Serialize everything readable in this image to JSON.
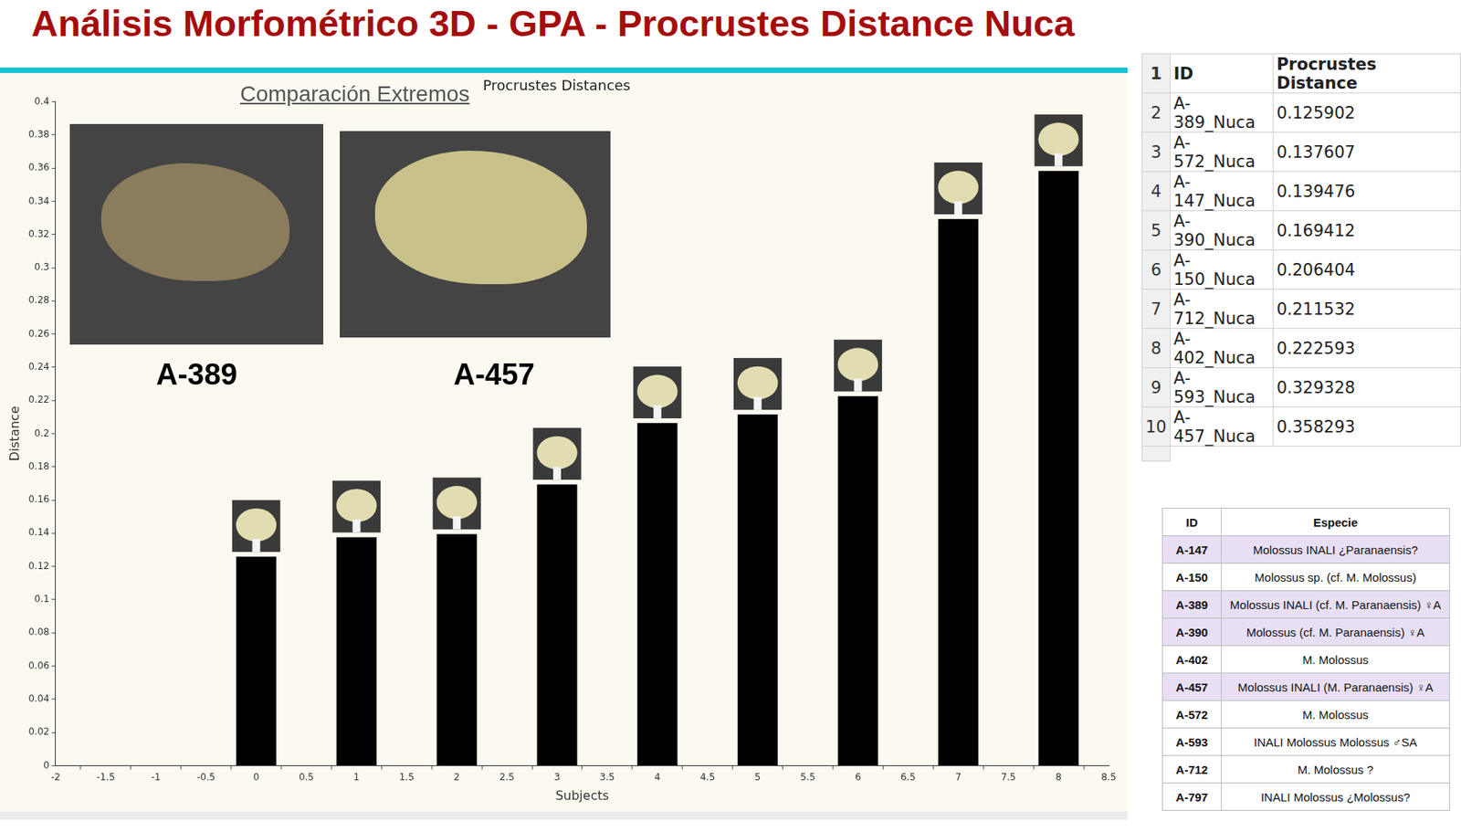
{
  "page_title": "Análisis Morfométrico 3D - GPA - Procrustes Distance Nuca",
  "chart_data": {
    "type": "bar",
    "title": "Procrustes Distances",
    "x_label": "Subjects",
    "y_label": "Distance",
    "x": [
      0,
      1,
      2,
      3,
      4,
      5,
      6,
      7,
      8
    ],
    "values": [
      0.125902,
      0.137607,
      0.139476,
      0.169412,
      0.206404,
      0.211532,
      0.222593,
      0.329328,
      0.358293
    ],
    "color": "#000000",
    "xlim": [
      -2,
      8.5
    ],
    "xticks": [
      -2,
      -1.5,
      -1,
      -0.5,
      0,
      0.5,
      1,
      1.5,
      2,
      2.5,
      3,
      3.5,
      4,
      4.5,
      5,
      5.5,
      6,
      6.5,
      7,
      7.5,
      8,
      8.5
    ],
    "ylim": [
      0,
      0.4
    ],
    "yticks": [
      0,
      0.02,
      0.04,
      0.06,
      0.08,
      0.1,
      0.12,
      0.14,
      0.16,
      0.18,
      0.2,
      0.22,
      0.24,
      0.26,
      0.28,
      0.3,
      0.32,
      0.34,
      0.36,
      0.38,
      0.4
    ],
    "grid": false,
    "annotations": [
      "Comparación Extremos",
      "A-389",
      "A-457"
    ]
  },
  "distance_table": {
    "rows": [
      [
        "1",
        "ID",
        "Procrustes Distance"
      ],
      [
        "2",
        "A-389_Nuca",
        "0.125902"
      ],
      [
        "3",
        "A-572_Nuca",
        "0.137607"
      ],
      [
        "4",
        "A-147_Nuca",
        "0.139476"
      ],
      [
        "5",
        "A-390_Nuca",
        "0.169412"
      ],
      [
        "6",
        "A-150_Nuca",
        "0.206404"
      ],
      [
        "7",
        "A-712_Nuca",
        "0.211532"
      ],
      [
        "8",
        "A-402_Nuca",
        "0.222593"
      ],
      [
        "9",
        "A-593_Nuca",
        "0.329328"
      ],
      [
        "10",
        "A-457_Nuca",
        "0.358293"
      ]
    ]
  },
  "species_table": {
    "header": [
      "ID",
      "Especie"
    ],
    "rows": [
      {
        "id": "A-147",
        "especie": "Molossus INALI ¿Paranaensis?",
        "color": "#e8dff5"
      },
      {
        "id": "A-150",
        "especie": "Molossus sp. (cf. M. Molossus)",
        "color": "#ffffff"
      },
      {
        "id": "A-389",
        "especie": "Molossus INALI (cf. M. Paranaensis) ♀A",
        "color": "#e8dff5"
      },
      {
        "id": "A-390",
        "especie": "Molossus (cf. M. Paranaensis) ♀A",
        "color": "#e8dff5"
      },
      {
        "id": "A-402",
        "especie": "M. Molossus",
        "color": "#ffffff"
      },
      {
        "id": "A-457",
        "especie": "Molossus INALI (M. Paranaensis) ♀A",
        "color": "#e8dff5"
      },
      {
        "id": "A-572",
        "especie": "M. Molossus",
        "color": "#ffffff"
      },
      {
        "id": "A-593",
        "especie": "INALI Molossus Molossus ♂SA",
        "color": "#ffffff"
      },
      {
        "id": "A-712",
        "especie": "M. Molossus ?",
        "color": "#ffffff"
      },
      {
        "id": "A-797",
        "especie": "INALI Molossus ¿Molossus?",
        "color": "#ffffff"
      }
    ]
  }
}
